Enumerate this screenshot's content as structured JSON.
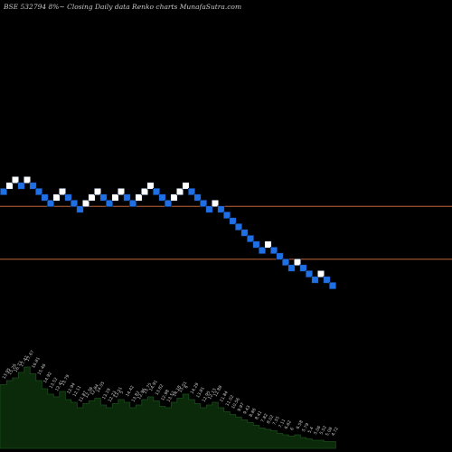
{
  "title": "BSE 532794  8%~   Closing Daily data  Renko  charts MunafaSutra.com",
  "colors": {
    "background": "#000000",
    "up_brick": "#ffffff",
    "down_brick": "#1f6fe5",
    "brick_outline": "#0b1a33",
    "reference_line": "#c0643c",
    "volume_fill": "#0a2a0a",
    "volume_outline": "#1b4d1b",
    "label_text": "#c8c8c8"
  },
  "chart_data": {
    "type": "renko",
    "title": "BSE 532794  8%~   Closing Daily data  Renko  charts MunafaSutra.com",
    "bricks": [
      {
        "level": 16,
        "direction": "down"
      },
      {
        "level": 17,
        "direction": "up"
      },
      {
        "level": 18,
        "direction": "up"
      },
      {
        "level": 17,
        "direction": "down"
      },
      {
        "level": 18,
        "direction": "up"
      },
      {
        "level": 17,
        "direction": "down"
      },
      {
        "level": 16,
        "direction": "down"
      },
      {
        "level": 15,
        "direction": "down"
      },
      {
        "level": 14,
        "direction": "down"
      },
      {
        "level": 15,
        "direction": "up"
      },
      {
        "level": 16,
        "direction": "up"
      },
      {
        "level": 15,
        "direction": "down"
      },
      {
        "level": 14,
        "direction": "down"
      },
      {
        "level": 13,
        "direction": "down"
      },
      {
        "level": 14,
        "direction": "up"
      },
      {
        "level": 15,
        "direction": "up"
      },
      {
        "level": 16,
        "direction": "up"
      },
      {
        "level": 15,
        "direction": "down"
      },
      {
        "level": 14,
        "direction": "down"
      },
      {
        "level": 15,
        "direction": "up"
      },
      {
        "level": 16,
        "direction": "up"
      },
      {
        "level": 15,
        "direction": "down"
      },
      {
        "level": 14,
        "direction": "down"
      },
      {
        "level": 15,
        "direction": "up"
      },
      {
        "level": 16,
        "direction": "up"
      },
      {
        "level": 17,
        "direction": "up"
      },
      {
        "level": 16,
        "direction": "down"
      },
      {
        "level": 15,
        "direction": "down"
      },
      {
        "level": 14,
        "direction": "down"
      },
      {
        "level": 15,
        "direction": "up"
      },
      {
        "level": 16,
        "direction": "up"
      },
      {
        "level": 17,
        "direction": "up"
      },
      {
        "level": 16,
        "direction": "down"
      },
      {
        "level": 15,
        "direction": "down"
      },
      {
        "level": 14,
        "direction": "down"
      },
      {
        "level": 13,
        "direction": "down"
      },
      {
        "level": 14,
        "direction": "up"
      },
      {
        "level": 13,
        "direction": "down"
      },
      {
        "level": 12,
        "direction": "down"
      },
      {
        "level": 11,
        "direction": "down"
      },
      {
        "level": 10,
        "direction": "down"
      },
      {
        "level": 9,
        "direction": "down"
      },
      {
        "level": 8,
        "direction": "down"
      },
      {
        "level": 7,
        "direction": "down"
      },
      {
        "level": 6,
        "direction": "down"
      },
      {
        "level": 7,
        "direction": "up"
      },
      {
        "level": 6,
        "direction": "down"
      },
      {
        "level": 5,
        "direction": "down"
      },
      {
        "level": 4,
        "direction": "down"
      },
      {
        "level": 3,
        "direction": "down"
      },
      {
        "level": 4,
        "direction": "up"
      },
      {
        "level": 3,
        "direction": "down"
      },
      {
        "level": 2,
        "direction": "down"
      },
      {
        "level": 1,
        "direction": "down"
      },
      {
        "level": 2,
        "direction": "up"
      },
      {
        "level": 1,
        "direction": "down"
      },
      {
        "level": 0,
        "direction": "down"
      }
    ],
    "reference_levels": [
      13.5,
      4.5
    ],
    "volume": [
      0.47,
      0.5,
      0.52,
      0.56,
      0.6,
      0.55,
      0.5,
      0.44,
      0.4,
      0.38,
      0.42,
      0.36,
      0.34,
      0.3,
      0.33,
      0.35,
      0.37,
      0.32,
      0.3,
      0.33,
      0.36,
      0.34,
      0.3,
      0.32,
      0.36,
      0.38,
      0.35,
      0.31,
      0.3,
      0.34,
      0.37,
      0.4,
      0.36,
      0.33,
      0.3,
      0.32,
      0.34,
      0.3,
      0.27,
      0.25,
      0.23,
      0.21,
      0.19,
      0.17,
      0.15,
      0.14,
      0.13,
      0.11,
      0.1,
      0.09,
      0.1,
      0.08,
      0.07,
      0.06,
      0.06,
      0.05,
      0.05
    ],
    "value_labels": [
      "13.95",
      "15.26",
      "16.73",
      "17.42",
      "17.67",
      "16.81",
      "15.46",
      "14.92",
      "13.52",
      "12.41",
      "13.79",
      "12.94",
      "12.11",
      "11.87",
      "12.36",
      "12.84",
      "14.05",
      "13.19",
      "12.23",
      "13.51",
      "5",
      "14.42",
      "13.82",
      "12.96",
      "13.75",
      "14.91",
      "13.82",
      "12.98",
      "13.52",
      "14.18",
      "15.01",
      "6",
      "14.29",
      "13.81",
      "12.95",
      "12.13",
      "12.88",
      "11.84",
      "11.02",
      "10.56",
      "9.97",
      "9.43",
      "8.86",
      "8.41",
      "7.82",
      "8.02",
      "7.55",
      "7.11",
      "6.62",
      "6",
      "6.58",
      "5.79",
      "5.4",
      "5.06",
      "5.52",
      "5.08",
      "4.72"
    ]
  }
}
